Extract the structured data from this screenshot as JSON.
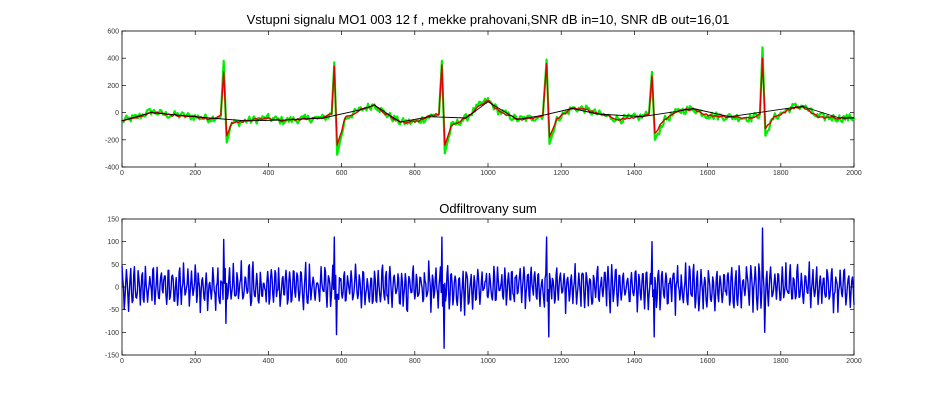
{
  "chart_data": [
    {
      "type": "line",
      "title": "Vstupni signalu MO1 003 12 f , mekke prahovani,SNR dB in=10, SNR dB out=16,01",
      "xlabel": "",
      "ylabel": "",
      "xlim": [
        0,
        2000
      ],
      "ylim": [
        -400,
        600
      ],
      "xticks": [
        "0",
        "200",
        "400",
        "600",
        "800",
        "1000",
        "1200",
        "1400",
        "1600",
        "1800",
        "2000"
      ],
      "yticks": [
        "-400",
        "-200",
        "0",
        "200",
        "400",
        "600"
      ],
      "grid": false,
      "series": [
        {
          "color": "#00ee00",
          "style": "noisy ECG input",
          "points": [
            [
              0,
              -60
            ],
            [
              40,
              -35
            ],
            [
              80,
              10
            ],
            [
              120,
              -15
            ],
            [
              160,
              -20
            ],
            [
              200,
              -30
            ],
            [
              240,
              -45
            ],
            [
              270,
              -20
            ],
            [
              278,
              380
            ],
            [
              286,
              -220
            ],
            [
              300,
              -80
            ],
            [
              340,
              -60
            ],
            [
              400,
              -40
            ],
            [
              440,
              -60
            ],
            [
              500,
              -45
            ],
            [
              550,
              -40
            ],
            [
              573,
              -10
            ],
            [
              580,
              370
            ],
            [
              588,
              -310
            ],
            [
              610,
              -40
            ],
            [
              650,
              20
            ],
            [
              690,
              60
            ],
            [
              720,
              -10
            ],
            [
              760,
              -70
            ],
            [
              800,
              -70
            ],
            [
              840,
              -30
            ],
            [
              866,
              -10
            ],
            [
              874,
              380
            ],
            [
              882,
              -300
            ],
            [
              900,
              -100
            ],
            [
              940,
              -40
            ],
            [
              980,
              60
            ],
            [
              1000,
              90
            ],
            [
              1030,
              10
            ],
            [
              1080,
              -50
            ],
            [
              1120,
              -40
            ],
            [
              1150,
              -20
            ],
            [
              1160,
              390
            ],
            [
              1168,
              -230
            ],
            [
              1190,
              -40
            ],
            [
              1230,
              30
            ],
            [
              1260,
              30
            ],
            [
              1300,
              -10
            ],
            [
              1360,
              -50
            ],
            [
              1420,
              -30
            ],
            [
              1440,
              -10
            ],
            [
              1448,
              300
            ],
            [
              1456,
              -200
            ],
            [
              1480,
              -60
            ],
            [
              1520,
              10
            ],
            [
              1560,
              30
            ],
            [
              1600,
              -20
            ],
            [
              1660,
              -30
            ],
            [
              1720,
              -40
            ],
            [
              1743,
              -10
            ],
            [
              1750,
              480
            ],
            [
              1758,
              -170
            ],
            [
              1780,
              -40
            ],
            [
              1830,
              40
            ],
            [
              1860,
              50
            ],
            [
              1900,
              -30
            ],
            [
              1960,
              -40
            ],
            [
              2000,
              -40
            ]
          ]
        },
        {
          "color": "#dd0000",
          "style": "denoised output",
          "points": [
            [
              0,
              -60
            ],
            [
              40,
              -40
            ],
            [
              80,
              5
            ],
            [
              120,
              -15
            ],
            [
              160,
              -20
            ],
            [
              200,
              -30
            ],
            [
              240,
              -45
            ],
            [
              270,
              -20
            ],
            [
              278,
              300
            ],
            [
              286,
              -170
            ],
            [
              300,
              -80
            ],
            [
              340,
              -60
            ],
            [
              400,
              -40
            ],
            [
              440,
              -60
            ],
            [
              500,
              -45
            ],
            [
              550,
              -40
            ],
            [
              573,
              -10
            ],
            [
              580,
              340
            ],
            [
              588,
              -240
            ],
            [
              610,
              -40
            ],
            [
              650,
              20
            ],
            [
              690,
              55
            ],
            [
              720,
              -10
            ],
            [
              760,
              -70
            ],
            [
              800,
              -70
            ],
            [
              840,
              -30
            ],
            [
              866,
              -10
            ],
            [
              874,
              350
            ],
            [
              882,
              -240
            ],
            [
              900,
              -100
            ],
            [
              940,
              -40
            ],
            [
              980,
              55
            ],
            [
              1000,
              85
            ],
            [
              1030,
              10
            ],
            [
              1080,
              -50
            ],
            [
              1120,
              -40
            ],
            [
              1150,
              -20
            ],
            [
              1160,
              360
            ],
            [
              1168,
              -180
            ],
            [
              1190,
              -40
            ],
            [
              1230,
              30
            ],
            [
              1260,
              30
            ],
            [
              1300,
              -10
            ],
            [
              1360,
              -50
            ],
            [
              1420,
              -30
            ],
            [
              1440,
              -10
            ],
            [
              1448,
              270
            ],
            [
              1456,
              -150
            ],
            [
              1480,
              -60
            ],
            [
              1520,
              10
            ],
            [
              1560,
              30
            ],
            [
              1600,
              -20
            ],
            [
              1660,
              -30
            ],
            [
              1720,
              -40
            ],
            [
              1743,
              -10
            ],
            [
              1750,
              400
            ],
            [
              1758,
              -120
            ],
            [
              1780,
              -40
            ],
            [
              1830,
              35
            ],
            [
              1860,
              45
            ],
            [
              1900,
              -30
            ],
            [
              1960,
              -40
            ],
            [
              2000,
              -40
            ]
          ]
        },
        {
          "color": "#000000",
          "style": "baseline trend",
          "points": [
            [
              0,
              -60
            ],
            [
              80,
              0
            ],
            [
              160,
              -20
            ],
            [
              240,
              -40
            ],
            [
              340,
              -60
            ],
            [
              440,
              -55
            ],
            [
              550,
              -40
            ],
            [
              650,
              20
            ],
            [
              690,
              55
            ],
            [
              760,
              -70
            ],
            [
              840,
              -30
            ],
            [
              940,
              -40
            ],
            [
              1000,
              80
            ],
            [
              1080,
              -50
            ],
            [
              1150,
              -20
            ],
            [
              1230,
              30
            ],
            [
              1300,
              -10
            ],
            [
              1420,
              -30
            ],
            [
              1520,
              10
            ],
            [
              1560,
              30
            ],
            [
              1660,
              -30
            ],
            [
              1830,
              35
            ],
            [
              1860,
              45
            ],
            [
              1960,
              -40
            ],
            [
              2000,
              -40
            ]
          ]
        }
      ]
    },
    {
      "type": "line",
      "title": "Odfiltrovany sum",
      "xlabel": "",
      "ylabel": "",
      "xlim": [
        0,
        2000
      ],
      "ylim": [
        -150,
        150
      ],
      "xticks": [
        "0",
        "200",
        "400",
        "600",
        "800",
        "1000",
        "1200",
        "1400",
        "1600",
        "1800",
        "2000"
      ],
      "yticks": [
        "-150",
        "-100",
        "-50",
        "0",
        "50",
        "100",
        "150"
      ],
      "grid": false,
      "series": [
        {
          "color": "#0000dd",
          "style": "filtered noise",
          "amplitude": 40,
          "spikes": [
            [
              278,
              105,
              -80
            ],
            [
              580,
              110,
              -105
            ],
            [
              874,
              110,
              -135
            ],
            [
              1160,
              110,
              -110
            ],
            [
              1448,
              100,
              -110
            ],
            [
              1750,
              130,
              -100
            ]
          ]
        }
      ]
    }
  ]
}
